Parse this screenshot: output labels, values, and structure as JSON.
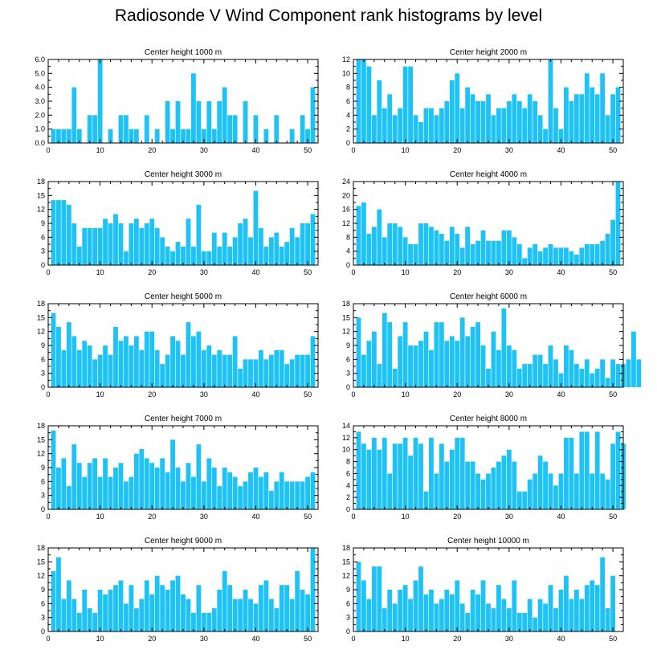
{
  "title": "Radiosonde V Wind Component rank histograms by level",
  "colors": {
    "bar": "#1ec2f5",
    "axis": "#000000",
    "background": "#ffffff"
  },
  "chart_data": [
    {
      "type": "bar",
      "title": "Center height 1000 m",
      "xlim": [
        0,
        52
      ],
      "ylim": [
        0,
        6
      ],
      "yticks": [
        0,
        1,
        2,
        3,
        4,
        5,
        6
      ],
      "ytick_format": "0.0",
      "xticks": [
        0,
        10,
        20,
        30,
        40,
        50
      ],
      "values": [
        1,
        1,
        1,
        1,
        4,
        1,
        0,
        2,
        2,
        6,
        0,
        1,
        0,
        2,
        2,
        1,
        1,
        0,
        2,
        0,
        1,
        0,
        3,
        1,
        3,
        1,
        1,
        5,
        3,
        1,
        3,
        1,
        3,
        4,
        2,
        2,
        0,
        3,
        0,
        2,
        0,
        1,
        0,
        2,
        0,
        0,
        1,
        0,
        2,
        1,
        4
      ]
    },
    {
      "type": "bar",
      "title": "Center height 2000 m",
      "xlim": [
        0,
        52
      ],
      "ylim": [
        0,
        12
      ],
      "yticks": [
        0,
        2,
        4,
        6,
        8,
        10,
        12
      ],
      "ytick_format": "0",
      "xticks": [
        0,
        10,
        20,
        30,
        40,
        50
      ],
      "values": [
        12,
        12,
        11,
        4,
        9,
        5,
        7,
        4,
        5,
        11,
        11,
        4,
        3,
        5,
        5,
        4,
        5,
        6,
        9,
        10,
        5,
        8,
        7,
        6,
        6,
        7,
        4,
        5,
        5,
        6,
        7,
        6,
        5,
        7,
        6,
        4,
        2,
        12,
        5,
        2,
        8,
        6,
        7,
        7,
        10,
        8,
        7,
        10,
        4,
        7,
        8
      ]
    },
    {
      "type": "bar",
      "title": "Center height 3000 m",
      "xlim": [
        0,
        52
      ],
      "ylim": [
        0,
        18
      ],
      "yticks": [
        0,
        3,
        6,
        9,
        12,
        15,
        18
      ],
      "ytick_format": "0",
      "xticks": [
        0,
        10,
        20,
        30,
        40,
        50
      ],
      "values": [
        14,
        14,
        14,
        13,
        9,
        4,
        8,
        8,
        8,
        8,
        10,
        9,
        11,
        9,
        3,
        9,
        10,
        8,
        9,
        10,
        8,
        6,
        4,
        3,
        5,
        4,
        10,
        4,
        13,
        3,
        3,
        7,
        4,
        7,
        4,
        6,
        9,
        10,
        6,
        16,
        8,
        4,
        6,
        7,
        4,
        5,
        8,
        6,
        9,
        9,
        11
      ]
    },
    {
      "type": "bar",
      "title": "Center height 4000 m",
      "xlim": [
        0,
        52
      ],
      "ylim": [
        0,
        24
      ],
      "yticks": [
        0,
        4,
        8,
        12,
        16,
        20,
        24
      ],
      "ytick_format": "0",
      "xticks": [
        0,
        10,
        20,
        30,
        40,
        50
      ],
      "values": [
        17,
        18,
        9,
        11,
        16,
        8,
        12,
        12,
        11,
        8,
        6,
        6,
        12,
        12,
        11,
        10,
        9,
        7,
        11,
        9,
        5,
        11,
        6,
        7,
        10,
        7,
        7,
        7,
        10,
        10,
        8,
        6,
        2,
        5,
        6,
        4,
        5,
        6,
        5,
        5,
        5,
        4,
        3,
        5,
        6,
        6,
        6,
        7,
        9,
        13,
        24
      ]
    },
    {
      "type": "bar",
      "title": "Center height 5000 m",
      "xlim": [
        0,
        52
      ],
      "ylim": [
        0,
        18
      ],
      "yticks": [
        0,
        3,
        6,
        9,
        12,
        15,
        18
      ],
      "ytick_format": "0",
      "xticks": [
        0,
        10,
        20,
        30,
        40,
        50
      ],
      "values": [
        16,
        13,
        8,
        14,
        11,
        8,
        10,
        9,
        6,
        7,
        9,
        7,
        13,
        10,
        11,
        9,
        11,
        8,
        12,
        12,
        8,
        5,
        7,
        11,
        10,
        7,
        14,
        11,
        12,
        8,
        9,
        7,
        8,
        7,
        7,
        11,
        4,
        6,
        6,
        6,
        8,
        6,
        7,
        8,
        8,
        5,
        6,
        7,
        7,
        7,
        11
      ]
    },
    {
      "type": "bar",
      "title": "Center height 6000 m",
      "xlim": [
        0,
        52
      ],
      "ylim": [
        0,
        18
      ],
      "yticks": [
        0,
        3,
        6,
        9,
        12,
        15,
        18
      ],
      "ytick_format": "0",
      "xticks": [
        0,
        10,
        20,
        30,
        40,
        50
      ],
      "values": [
        15,
        7,
        10,
        12,
        5,
        16,
        14,
        4,
        11,
        14,
        9,
        9,
        10,
        12,
        8,
        14,
        14,
        10,
        11,
        10,
        15,
        11,
        13,
        14,
        9,
        4,
        12,
        8,
        17,
        9,
        8,
        4,
        5,
        5,
        7,
        7,
        5,
        9,
        6,
        3,
        9,
        8,
        5,
        4,
        6,
        3,
        4,
        6,
        2,
        6,
        5,
        5,
        6,
        12,
        6
      ]
    },
    {
      "type": "bar",
      "title": "Center height 7000 m",
      "xlim": [
        0,
        52
      ],
      "ylim": [
        0,
        18
      ],
      "yticks": [
        0,
        3,
        6,
        9,
        12,
        15,
        18
      ],
      "ytick_format": "0",
      "xticks": [
        0,
        10,
        20,
        30,
        40,
        50
      ],
      "values": [
        17,
        9,
        11,
        5,
        14,
        10,
        7,
        10,
        11,
        7,
        11,
        7,
        9,
        10,
        6,
        7,
        12,
        13,
        11,
        10,
        9,
        11,
        8,
        15,
        9,
        6,
        10,
        7,
        14,
        6,
        11,
        9,
        5,
        9,
        8,
        7,
        5,
        6,
        8,
        9,
        7,
        8,
        4,
        6,
        8,
        6,
        6,
        6,
        6,
        7,
        8
      ]
    },
    {
      "type": "bar",
      "title": "Center height 8000 m",
      "xlim": [
        0,
        52
      ],
      "ylim": [
        0,
        14
      ],
      "yticks": [
        0,
        2,
        4,
        6,
        8,
        10,
        12,
        14
      ],
      "ytick_format": "0",
      "xticks": [
        0,
        10,
        20,
        30,
        40,
        50
      ],
      "values": [
        13,
        11,
        10,
        12,
        10,
        12,
        6,
        11,
        11,
        12,
        9,
        12,
        11,
        3,
        12,
        6,
        11,
        8,
        10,
        12,
        12,
        8,
        8,
        6,
        5,
        6,
        7,
        8,
        9,
        10,
        8,
        3,
        3,
        5,
        6,
        9,
        8,
        6,
        4,
        6,
        12,
        12,
        6,
        13,
        13,
        6,
        13,
        6,
        5,
        11,
        13,
        11
      ]
    },
    {
      "type": "bar",
      "title": "Center height 9000 m",
      "xlim": [
        0,
        52
      ],
      "ylim": [
        0,
        18
      ],
      "yticks": [
        0,
        3,
        6,
        9,
        12,
        15,
        18
      ],
      "ytick_format": "0",
      "xticks": [
        0,
        10,
        20,
        30,
        40,
        50
      ],
      "values": [
        13,
        16,
        7,
        11,
        7,
        4,
        9,
        5,
        4,
        9,
        8,
        9,
        10,
        11,
        6,
        10,
        5,
        7,
        11,
        8,
        12,
        10,
        9,
        11,
        12,
        8,
        7,
        4,
        10,
        4,
        4,
        5,
        9,
        13,
        10,
        7,
        7,
        9,
        7,
        6,
        10,
        11,
        7,
        5,
        10,
        10,
        7,
        13,
        9,
        8,
        18
      ]
    },
    {
      "type": "bar",
      "title": "Center height 10000 m",
      "xlim": [
        0,
        52
      ],
      "ylim": [
        0,
        18
      ],
      "yticks": [
        0,
        3,
        6,
        9,
        12,
        15,
        18
      ],
      "ytick_format": "0",
      "xticks": [
        0,
        10,
        20,
        30,
        40,
        50
      ],
      "values": [
        15,
        11,
        7,
        14,
        14,
        5,
        9,
        6,
        9,
        10,
        7,
        11,
        14,
        8,
        9,
        6,
        7,
        9,
        8,
        11,
        6,
        4,
        9,
        8,
        11,
        6,
        5,
        10,
        7,
        5,
        11,
        4,
        4,
        7,
        3,
        7,
        6,
        10,
        5,
        9,
        12,
        7,
        9,
        7,
        10,
        11,
        10,
        16,
        5,
        12
      ]
    }
  ]
}
